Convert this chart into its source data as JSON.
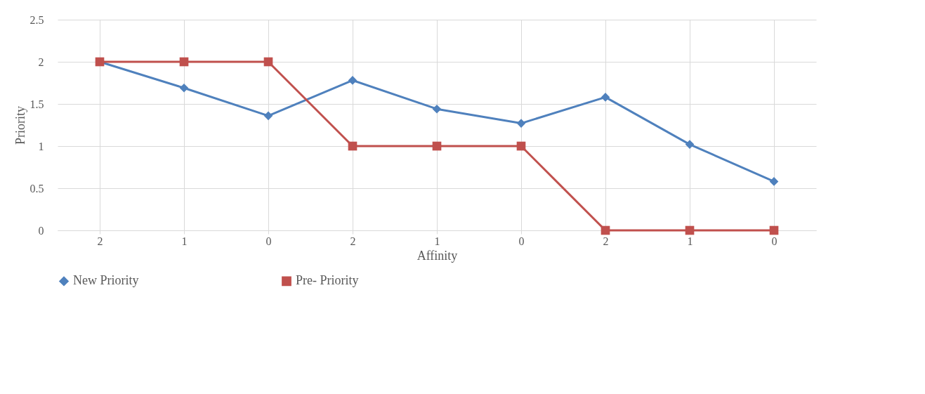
{
  "chart_data": {
    "type": "line",
    "xlabel": "Affinity",
    "ylabel": "Priority",
    "categories": [
      "2",
      "1",
      "0",
      "2",
      "1",
      "0",
      "2",
      "1",
      "0"
    ],
    "series": [
      {
        "name": "New Priority",
        "color": "#4f81bd",
        "marker": "diamond",
        "values": [
          2,
          1.69,
          1.36,
          1.78,
          1.44,
          1.27,
          1.58,
          1.02,
          0.58
        ]
      },
      {
        "name": "Pre- Priority",
        "color": "#c0504d",
        "marker": "square",
        "values": [
          2,
          2,
          2,
          1,
          1,
          1,
          0,
          0,
          0
        ]
      }
    ],
    "ylim": [
      0,
      2.5
    ],
    "yticks": [
      0,
      0.5,
      1,
      1.5,
      2,
      2.5
    ],
    "grid": true,
    "legend": "bottom",
    "line_style": "solid"
  }
}
